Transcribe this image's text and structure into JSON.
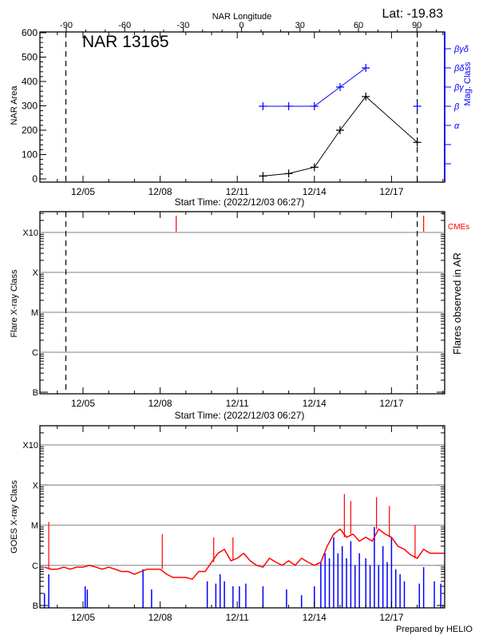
{
  "header": {
    "latitude": "Lat: -19.83",
    "top_axis_label": "NAR Longitude",
    "region_title": "NAR 13165"
  },
  "colors": {
    "nar_area": "#000000",
    "mag_class": "#0000ff",
    "cme": "#ff0000",
    "goes_long": "#ff0000",
    "goes_flares": "#0000ff",
    "grid": "#999999"
  },
  "x_axis": {
    "tick_labels": [
      "12/05",
      "12/08",
      "12/11",
      "12/14",
      "12/17"
    ],
    "start_time_label": "Start Time: (2022/12/03 06:27)"
  },
  "footer": {
    "credit": "Prepared by HELIO"
  },
  "chart_data": [
    {
      "type": "line",
      "title": "NAR 13165",
      "ylabel": "NAR Area",
      "ylim": [
        0,
        600
      ],
      "yticks": [
        "0",
        "100",
        "200",
        "300",
        "400",
        "500",
        "600"
      ],
      "top_axis": {
        "label": "NAR Longitude",
        "ticks": [
          "-90",
          "-60",
          "-30",
          "0",
          "30",
          "60",
          "90"
        ],
        "limb_crossings": {
          "-90": "12/04 08:00",
          "90": "12/18 00:00"
        }
      },
      "right_axis": {
        "label": "Mag. Class",
        "classes": [
          "α",
          "β",
          "βγ",
          "βδ",
          "βγδ"
        ]
      },
      "series": [
        {
          "name": "NAR Area",
          "x": [
            "12/12",
            "12/13",
            "12/14",
            "12/15",
            "12/16",
            "12/18"
          ],
          "values": [
            12,
            22,
            48,
            200,
            338,
            150
          ]
        },
        {
          "name": "Mag. Class",
          "x": [
            "12/12",
            "12/13",
            "12/14",
            "12/15",
            "12/16",
            "12/18"
          ],
          "segments": [
            [
              0,
              1,
              2,
              3,
              4
            ],
            [
              5
            ]
          ],
          "values": [
            "β",
            "β",
            "β",
            "βγ",
            "βδ",
            "β"
          ]
        }
      ]
    },
    {
      "type": "scatter",
      "ylabel": "Flare X-ray Class",
      "right_label": "Flares observed in AR",
      "yscale": "log",
      "yticks": [
        "B",
        "C",
        "M",
        "X",
        "X10"
      ],
      "grid": true,
      "flares": [],
      "cmes": {
        "label": "CMEs",
        "times": [
          "12/08 15:00",
          "12/18 06:00"
        ]
      }
    },
    {
      "type": "line",
      "ylabel": "GOES X-ray Class",
      "yscale": "log",
      "yticks": [
        "B",
        "C",
        "M",
        "X",
        "X10"
      ],
      "grid": true,
      "long_channel": {
        "start": "12/03 06:00",
        "step_hours": 6,
        "flux": [
          1.2e-06,
          9e-07,
          8e-07,
          8e-07,
          9e-07,
          8e-07,
          9e-07,
          9e-07,
          1e-06,
          9e-07,
          8e-07,
          9e-07,
          8e-07,
          7e-07,
          7e-07,
          6e-07,
          7e-07,
          8e-07,
          8e-07,
          8e-07,
          6e-07,
          5e-07,
          5e-07,
          5e-07,
          4.5e-07,
          7e-07,
          7e-07,
          1.2e-06,
          2e-06,
          2.5e-06,
          1.3e-06,
          1.5e-06,
          2e-06,
          1.3e-06,
          1e-06,
          9e-07,
          1.5e-06,
          1.2e-06,
          1e-06,
          1.3e-06,
          1e-06,
          1.5e-06,
          1.2e-06,
          1e-06,
          1.2e-06,
          3e-06,
          6e-06,
          8e-06,
          5e-06,
          6e-06,
          4e-06,
          5e-06,
          4e-06,
          8e-06,
          6e-06,
          5e-06,
          3e-06,
          2.5e-06,
          1.8e-06,
          1.5e-06,
          2.5e-06,
          2e-06,
          2e-06,
          2e-06
        ],
        "peaks": [
          [
            "12/03 16:00",
            1.2e-05
          ],
          [
            "12/08 02:00",
            6e-06
          ],
          [
            "12/10 02:00",
            5e-06
          ],
          [
            "12/10 20:00",
            5e-06
          ],
          [
            "12/15 04:00",
            6e-05
          ],
          [
            "12/15 10:00",
            4e-05
          ],
          [
            "12/16 10:00",
            5e-05
          ],
          [
            "12/16 22:00",
            3e-05
          ],
          [
            "12/17 22:00",
            1e-05
          ]
        ]
      },
      "flare_events": [
        [
          "12/03 12:00",
          2e-07
        ],
        [
          "12/03 16:00",
          6e-07
        ],
        [
          "12/05 02:00",
          3e-07
        ],
        [
          "12/05 04:00",
          2.5e-07
        ],
        [
          "12/07 08:00",
          8e-07
        ],
        [
          "12/07 16:00",
          2.5e-07
        ],
        [
          "12/09 20:00",
          4e-07
        ],
        [
          "12/10 04:00",
          3.5e-07
        ],
        [
          "12/10 08:00",
          6e-07
        ],
        [
          "12/10 12:00",
          4e-07
        ],
        [
          "12/10 20:00",
          3e-07
        ],
        [
          "12/11 02:00",
          3e-07
        ],
        [
          "12/11 08:00",
          3.5e-07
        ],
        [
          "12/12 00:00",
          3e-07
        ],
        [
          "12/12 22:00",
          2.5e-07
        ],
        [
          "12/13 12:00",
          1.8e-07
        ],
        [
          "12/14 00:00",
          3e-07
        ],
        [
          "12/14 06:00",
          1.2e-06
        ],
        [
          "12/14 10:00",
          2e-06
        ],
        [
          "12/14 14:00",
          1.5e-06
        ],
        [
          "12/14 18:00",
          5e-06
        ],
        [
          "12/14 22:00",
          2e-06
        ],
        [
          "12/15 02:00",
          3e-06
        ],
        [
          "12/15 06:00",
          1.5e-06
        ],
        [
          "12/15 10:00",
          4e-06
        ],
        [
          "12/15 14:00",
          1e-06
        ],
        [
          "12/15 18:00",
          2e-06
        ],
        [
          "12/16 00:00",
          1.5e-06
        ],
        [
          "12/16 04:00",
          1e-06
        ],
        [
          "12/16 08:00",
          9e-06
        ],
        [
          "12/16 12:00",
          1e-06
        ],
        [
          "12/16 16:00",
          3e-06
        ],
        [
          "12/16 20:00",
          1.2e-06
        ],
        [
          "12/17 00:00",
          5e-06
        ],
        [
          "12/17 04:00",
          8e-07
        ],
        [
          "12/17 08:00",
          6e-07
        ],
        [
          "12/17 12:00",
          4e-07
        ],
        [
          "12/18 02:00",
          3.5e-07
        ],
        [
          "12/18 06:00",
          9e-07
        ],
        [
          "12/18 16:00",
          4e-07
        ],
        [
          "12/18 22:00",
          3.5e-07
        ]
      ]
    }
  ]
}
